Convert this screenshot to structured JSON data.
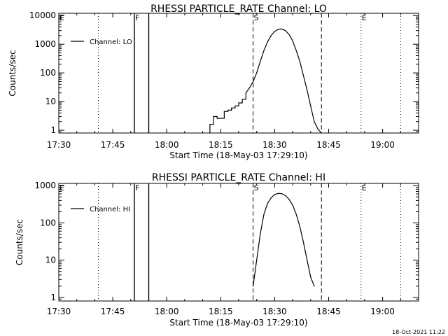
{
  "footer_timestamp": "18-Oct-2021 11:22",
  "chart_data": [
    {
      "type": "line",
      "title": "RHESSI PARTICLE_RATE Channel: LO",
      "xlabel": "Start Time (18-May-03 17:29:10)",
      "ylabel": "Counts/sec",
      "yscale": "log",
      "xlim": [
        "17:30",
        "19:10"
      ],
      "ylim": [
        0.8,
        12000
      ],
      "x_ticks": [
        "17:30",
        "17:45",
        "18:00",
        "18:15",
        "18:30",
        "18:45",
        "19:00"
      ],
      "y_ticks": [
        "1",
        "10",
        "100",
        "1000",
        "10000"
      ],
      "legend": "Channel: LO",
      "grid": false,
      "markers": [
        {
          "label": "E",
          "time": "17:30",
          "style": "dotted"
        },
        {
          "label": "",
          "time": "17:41",
          "style": "dotted"
        },
        {
          "label": "F",
          "time": "17:51",
          "style": "solid"
        },
        {
          "label": "",
          "time": "17:55",
          "style": "solid"
        },
        {
          "label": "S",
          "time": "18:24",
          "style": "dashed"
        },
        {
          "label": "",
          "time": "18:43",
          "style": "dashed"
        },
        {
          "label": "E",
          "time": "18:54",
          "style": "dotted"
        },
        {
          "label": "",
          "time": "19:05",
          "style": "dotted"
        }
      ],
      "series": [
        {
          "name": "Channel: LO",
          "x": [
            "18:12",
            "18:12",
            "18:13",
            "18:13",
            "18:14",
            "18:14",
            "18:16",
            "18:16",
            "18:17",
            "18:17",
            "18:18",
            "18:18",
            "18:19",
            "18:19",
            "18:20",
            "18:20",
            "18:21",
            "18:21",
            "18:22",
            "18:22",
            "18:23",
            "18:24",
            "18:25",
            "18:26",
            "18:27",
            "18:28",
            "18:29",
            "18:30",
            "18:31",
            "18:32",
            "18:33",
            "18:34",
            "18:35",
            "18:36",
            "18:37",
            "18:38",
            "18:39",
            "18:40",
            "18:41",
            "18:42",
            "18:43"
          ],
          "values": [
            0.8,
            1.6,
            1.6,
            3,
            3,
            2.6,
            2.6,
            4.5,
            4.5,
            5,
            5,
            6,
            6,
            7,
            7,
            9,
            9,
            12,
            12,
            20,
            30,
            50,
            100,
            250,
            600,
            1200,
            2000,
            2800,
            3300,
            3400,
            3000,
            2200,
            1300,
            600,
            250,
            80,
            25,
            7,
            2,
            1.1,
            0.8
          ]
        }
      ]
    },
    {
      "type": "line",
      "title": "RHESSI PARTICLE_RATE Channel: HI",
      "xlabel": "Start Time (18-May-03 17:29:10)",
      "ylabel": "Counts/sec",
      "yscale": "log",
      "xlim": [
        "17:30",
        "19:10"
      ],
      "ylim": [
        0.8,
        1150
      ],
      "x_ticks": [
        "17:30",
        "17:45",
        "18:00",
        "18:15",
        "18:30",
        "18:45",
        "19:00"
      ],
      "y_ticks": [
        "1",
        "10",
        "100",
        "1000"
      ],
      "legend": "Channel: HI",
      "grid": false,
      "markers": [
        {
          "label": "E",
          "time": "17:30",
          "style": "dotted"
        },
        {
          "label": "",
          "time": "17:41",
          "style": "dotted"
        },
        {
          "label": "F",
          "time": "17:51",
          "style": "solid"
        },
        {
          "label": "",
          "time": "17:55",
          "style": "solid"
        },
        {
          "label": "S",
          "time": "18:24",
          "style": "dashed"
        },
        {
          "label": "",
          "time": "18:43",
          "style": "dashed"
        },
        {
          "label": "E",
          "time": "18:54",
          "style": "dotted"
        },
        {
          "label": "",
          "time": "19:05",
          "style": "dotted"
        }
      ],
      "series": [
        {
          "name": "Channel: HI",
          "x": [
            "18:24",
            "18:25",
            "18:26",
            "18:27",
            "18:28",
            "18:29",
            "18:30",
            "18:31",
            "18:32",
            "18:33",
            "18:34",
            "18:35",
            "18:36",
            "18:37",
            "18:38",
            "18:39",
            "18:40",
            "18:41"
          ],
          "values": [
            2,
            10,
            50,
            170,
            330,
            470,
            580,
            620,
            610,
            540,
            430,
            300,
            170,
            80,
            30,
            10,
            3.5,
            2
          ]
        }
      ]
    }
  ]
}
